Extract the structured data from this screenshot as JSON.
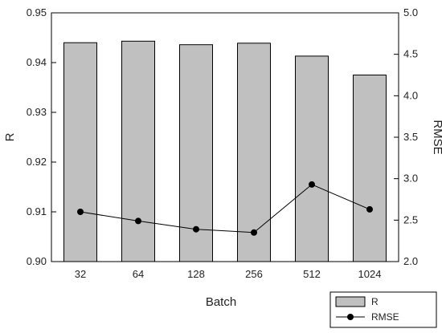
{
  "chart_data": {
    "type": "bar",
    "categories": [
      "32",
      "64",
      "128",
      "256",
      "512",
      "1024"
    ],
    "xlabel": "Batch",
    "ylabel": "R",
    "y2label": "RMSE",
    "ylim": [
      0.9,
      0.95
    ],
    "y2lim": [
      2.0,
      5.0
    ],
    "yticks": [
      "0.90",
      "0.91",
      "0.92",
      "0.93",
      "0.94",
      "0.95"
    ],
    "y2ticks": [
      "2.0",
      "2.5",
      "3.0",
      "3.5",
      "4.0",
      "4.5",
      "5.0"
    ],
    "grid": false,
    "legend_position": "bottom-right",
    "series": [
      {
        "name": "R",
        "type": "bar",
        "axis": "left",
        "color": "#c0c0c0",
        "values": [
          0.944,
          0.9443,
          0.9436,
          0.9439,
          0.9413,
          0.9375
        ]
      },
      {
        "name": "RMSE",
        "type": "line",
        "axis": "right",
        "color": "#000000",
        "values": [
          2.6,
          2.49,
          2.39,
          2.35,
          2.93,
          2.63
        ]
      }
    ]
  }
}
